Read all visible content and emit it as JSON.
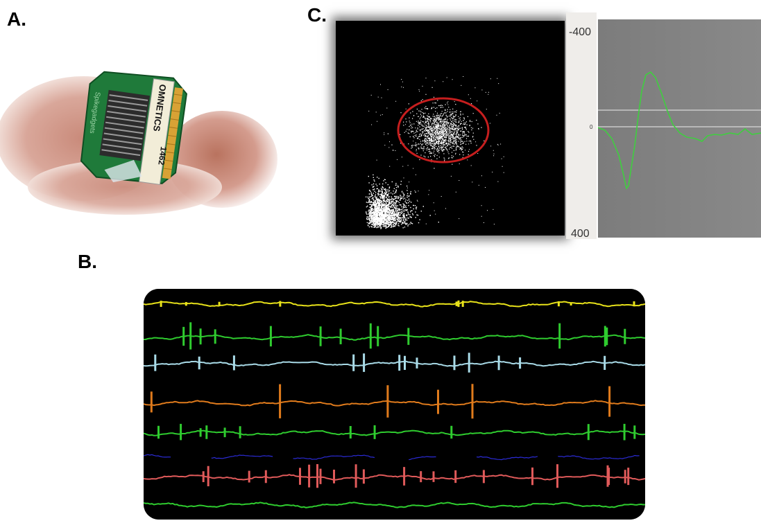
{
  "labels": {
    "a": "A.",
    "b": "B.",
    "c": "C."
  },
  "chip": {
    "brand": "OMNETICS",
    "model": "1462",
    "board": "Spikegadgets"
  },
  "waveform_axis": {
    "top": "-400",
    "zero": "0",
    "bottom": "400"
  },
  "colors": {
    "trace_yellow": "#e8e21a",
    "trace_green": "#2fcc2f",
    "trace_lightblue": "#a9dbe8",
    "trace_orange": "#e07b1c",
    "trace_blue": "#2b2bd6",
    "trace_red": "#e05a5a",
    "cluster_ellipse": "#c61e1e",
    "waveform": "#3fcf3f"
  }
}
